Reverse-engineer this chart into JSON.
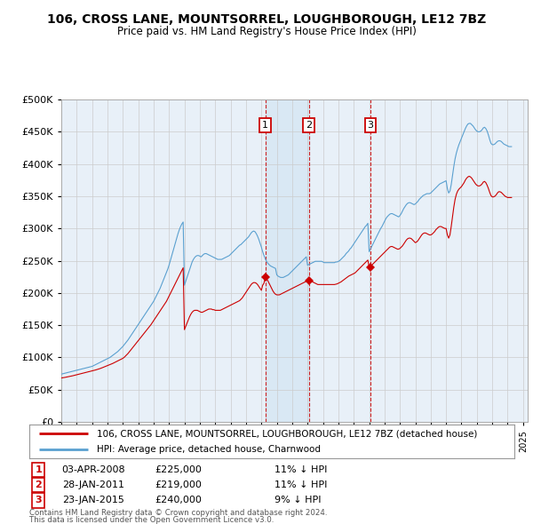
{
  "title": "106, CROSS LANE, MOUNTSORREL, LOUGHBOROUGH, LE12 7BZ",
  "subtitle": "Price paid vs. HM Land Registry's House Price Index (HPI)",
  "hpi_color": "#5aa0d0",
  "price_color": "#cc0000",
  "background_color": "#ffffff",
  "grid_color": "#cccccc",
  "chart_bg_color": "#e8f0f8",
  "ylim": [
    0,
    500000
  ],
  "yticks": [
    0,
    50000,
    100000,
    150000,
    200000,
    250000,
    300000,
    350000,
    400000,
    450000,
    500000
  ],
  "legend_label_price": "106, CROSS LANE, MOUNTSORREL, LOUGHBOROUGH, LE12 7BZ (detached house)",
  "legend_label_hpi": "HPI: Average price, detached house, Charnwood",
  "transactions": [
    {
      "num": 1,
      "date": "03-APR-2008",
      "price": 225000,
      "hpi_diff": "11% ↓ HPI",
      "x": 2008.25
    },
    {
      "num": 2,
      "date": "28-JAN-2011",
      "price": 219000,
      "hpi_diff": "11% ↓ HPI",
      "x": 2011.08
    },
    {
      "num": 3,
      "date": "23-JAN-2015",
      "price": 240000,
      "hpi_diff": "9% ↓ HPI",
      "x": 2015.08
    }
  ],
  "footnote1": "Contains HM Land Registry data © Crown copyright and database right 2024.",
  "footnote2": "This data is licensed under the Open Government Licence v3.0.",
  "hpi_data_x": [
    1995.0,
    1995.083,
    1995.167,
    1995.25,
    1995.333,
    1995.417,
    1995.5,
    1995.583,
    1995.667,
    1995.75,
    1995.833,
    1995.917,
    1996.0,
    1996.083,
    1996.167,
    1996.25,
    1996.333,
    1996.417,
    1996.5,
    1996.583,
    1996.667,
    1996.75,
    1996.833,
    1996.917,
    1997.0,
    1997.083,
    1997.167,
    1997.25,
    1997.333,
    1997.417,
    1997.5,
    1997.583,
    1997.667,
    1997.75,
    1997.833,
    1997.917,
    1998.0,
    1998.083,
    1998.167,
    1998.25,
    1998.333,
    1998.417,
    1998.5,
    1998.583,
    1998.667,
    1998.75,
    1998.833,
    1998.917,
    1999.0,
    1999.083,
    1999.167,
    1999.25,
    1999.333,
    1999.417,
    1999.5,
    1999.583,
    1999.667,
    1999.75,
    1999.833,
    1999.917,
    2000.0,
    2000.083,
    2000.167,
    2000.25,
    2000.333,
    2000.417,
    2000.5,
    2000.583,
    2000.667,
    2000.75,
    2000.833,
    2000.917,
    2001.0,
    2001.083,
    2001.167,
    2001.25,
    2001.333,
    2001.417,
    2001.5,
    2001.583,
    2001.667,
    2001.75,
    2001.833,
    2001.917,
    2002.0,
    2002.083,
    2002.167,
    2002.25,
    2002.333,
    2002.417,
    2002.5,
    2002.583,
    2002.667,
    2002.75,
    2002.833,
    2002.917,
    2003.0,
    2003.083,
    2003.167,
    2003.25,
    2003.333,
    2003.417,
    2003.5,
    2003.583,
    2003.667,
    2003.75,
    2003.833,
    2003.917,
    2004.0,
    2004.083,
    2004.167,
    2004.25,
    2004.333,
    2004.417,
    2004.5,
    2004.583,
    2004.667,
    2004.75,
    2004.833,
    2004.917,
    2005.0,
    2005.083,
    2005.167,
    2005.25,
    2005.333,
    2005.417,
    2005.5,
    2005.583,
    2005.667,
    2005.75,
    2005.833,
    2005.917,
    2006.0,
    2006.083,
    2006.167,
    2006.25,
    2006.333,
    2006.417,
    2006.5,
    2006.583,
    2006.667,
    2006.75,
    2006.833,
    2006.917,
    2007.0,
    2007.083,
    2007.167,
    2007.25,
    2007.333,
    2007.417,
    2007.5,
    2007.583,
    2007.667,
    2007.75,
    2007.833,
    2007.917,
    2008.0,
    2008.083,
    2008.167,
    2008.25,
    2008.333,
    2008.417,
    2008.5,
    2008.583,
    2008.667,
    2008.75,
    2008.833,
    2008.917,
    2009.0,
    2009.083,
    2009.167,
    2009.25,
    2009.333,
    2009.417,
    2009.5,
    2009.583,
    2009.667,
    2009.75,
    2009.833,
    2009.917,
    2010.0,
    2010.083,
    2010.167,
    2010.25,
    2010.333,
    2010.417,
    2010.5,
    2010.583,
    2010.667,
    2010.75,
    2010.833,
    2010.917,
    2011.0,
    2011.083,
    2011.167,
    2011.25,
    2011.333,
    2011.417,
    2011.5,
    2011.583,
    2011.667,
    2011.75,
    2011.833,
    2011.917,
    2012.0,
    2012.083,
    2012.167,
    2012.25,
    2012.333,
    2012.417,
    2012.5,
    2012.583,
    2012.667,
    2012.75,
    2012.833,
    2012.917,
    2013.0,
    2013.083,
    2013.167,
    2013.25,
    2013.333,
    2013.417,
    2013.5,
    2013.583,
    2013.667,
    2013.75,
    2013.833,
    2013.917,
    2014.0,
    2014.083,
    2014.167,
    2014.25,
    2014.333,
    2014.417,
    2014.5,
    2014.583,
    2014.667,
    2014.75,
    2014.833,
    2014.917,
    2015.0,
    2015.083,
    2015.167,
    2015.25,
    2015.333,
    2015.417,
    2015.5,
    2015.583,
    2015.667,
    2015.75,
    2015.833,
    2015.917,
    2016.0,
    2016.083,
    2016.167,
    2016.25,
    2016.333,
    2016.417,
    2016.5,
    2016.583,
    2016.667,
    2016.75,
    2016.833,
    2016.917,
    2017.0,
    2017.083,
    2017.167,
    2017.25,
    2017.333,
    2017.417,
    2017.5,
    2017.583,
    2017.667,
    2017.75,
    2017.833,
    2017.917,
    2018.0,
    2018.083,
    2018.167,
    2018.25,
    2018.333,
    2018.417,
    2018.5,
    2018.583,
    2018.667,
    2018.75,
    2018.833,
    2018.917,
    2019.0,
    2019.083,
    2019.167,
    2019.25,
    2019.333,
    2019.417,
    2019.5,
    2019.583,
    2019.667,
    2019.75,
    2019.833,
    2019.917,
    2020.0,
    2020.083,
    2020.167,
    2020.25,
    2020.333,
    2020.417,
    2020.5,
    2020.583,
    2020.667,
    2020.75,
    2020.833,
    2020.917,
    2021.0,
    2021.083,
    2021.167,
    2021.25,
    2021.333,
    2021.417,
    2021.5,
    2021.583,
    2021.667,
    2021.75,
    2021.833,
    2021.917,
    2022.0,
    2022.083,
    2022.167,
    2022.25,
    2022.333,
    2022.417,
    2022.5,
    2022.583,
    2022.667,
    2022.75,
    2022.833,
    2022.917,
    2023.0,
    2023.083,
    2023.167,
    2023.25,
    2023.333,
    2023.417,
    2023.5,
    2023.583,
    2023.667,
    2023.75,
    2023.833,
    2023.917,
    2024.0,
    2024.083,
    2024.167,
    2024.25
  ],
  "hpi_data_y": [
    74000,
    74500,
    75000,
    75500,
    76000,
    76500,
    77000,
    77500,
    78000,
    78500,
    79000,
    79500,
    80000,
    80500,
    81000,
    81500,
    82000,
    82500,
    83000,
    83500,
    84000,
    84500,
    85000,
    85500,
    86000,
    87000,
    88000,
    89000,
    90000,
    91000,
    92000,
    93000,
    94000,
    95000,
    96000,
    97000,
    98000,
    99000,
    100000,
    101500,
    103000,
    104500,
    106000,
    107500,
    109000,
    111000,
    113000,
    115000,
    117000,
    119500,
    122000,
    124500,
    127000,
    130000,
    133000,
    136000,
    139000,
    142000,
    145000,
    148000,
    151000,
    154000,
    157000,
    160000,
    163000,
    166000,
    169000,
    172000,
    175000,
    178000,
    181000,
    184000,
    187000,
    191000,
    195000,
    199000,
    203000,
    207000,
    212000,
    217000,
    222000,
    227000,
    232000,
    237000,
    243000,
    250000,
    257000,
    264000,
    271000,
    278000,
    285000,
    292000,
    298000,
    303000,
    307000,
    310000,
    212000,
    218000,
    224000,
    230000,
    236000,
    242000,
    248000,
    252000,
    255000,
    257000,
    258000,
    258000,
    257000,
    256000,
    258000,
    260000,
    261000,
    261000,
    260000,
    259000,
    258000,
    257000,
    256000,
    255000,
    254000,
    253000,
    252000,
    252000,
    252000,
    252000,
    253000,
    254000,
    255000,
    256000,
    257000,
    258000,
    260000,
    262000,
    264000,
    266000,
    268000,
    270000,
    272000,
    274000,
    275000,
    277000,
    279000,
    281000,
    283000,
    285000,
    287000,
    290000,
    293000,
    295000,
    296000,
    295000,
    292000,
    288000,
    283000,
    277000,
    271000,
    264000,
    258000,
    253000,
    249000,
    246000,
    244000,
    242000,
    241000,
    240000,
    239000,
    238000,
    228000,
    226000,
    225000,
    224000,
    224000,
    224000,
    225000,
    226000,
    227000,
    228000,
    230000,
    232000,
    234000,
    236000,
    238000,
    240000,
    242000,
    244000,
    246000,
    248000,
    250000,
    252000,
    254000,
    256000,
    243000,
    244000,
    245000,
    246000,
    247000,
    248000,
    249000,
    249000,
    249000,
    249000,
    249000,
    249000,
    248000,
    247000,
    247000,
    247000,
    247000,
    247000,
    247000,
    247000,
    247000,
    247000,
    248000,
    248000,
    249000,
    250000,
    252000,
    254000,
    256000,
    258000,
    261000,
    263000,
    265000,
    268000,
    270000,
    273000,
    276000,
    279000,
    282000,
    285000,
    288000,
    291000,
    294000,
    297000,
    300000,
    303000,
    305000,
    308000,
    264000,
    268000,
    272000,
    276000,
    280000,
    284000,
    288000,
    292000,
    296000,
    300000,
    303000,
    307000,
    311000,
    315000,
    318000,
    320000,
    322000,
    323000,
    323000,
    322000,
    321000,
    320000,
    319000,
    318000,
    320000,
    323000,
    327000,
    331000,
    334000,
    337000,
    339000,
    340000,
    340000,
    339000,
    338000,
    337000,
    338000,
    340000,
    342000,
    345000,
    347000,
    349000,
    351000,
    352000,
    353000,
    354000,
    354000,
    354000,
    355000,
    357000,
    359000,
    361000,
    363000,
    365000,
    367000,
    369000,
    370000,
    371000,
    372000,
    373000,
    374000,
    362000,
    355000,
    358000,
    368000,
    382000,
    396000,
    408000,
    417000,
    424000,
    430000,
    435000,
    440000,
    445000,
    450000,
    455000,
    459000,
    462000,
    463000,
    463000,
    461000,
    459000,
    456000,
    453000,
    451000,
    450000,
    450000,
    451000,
    453000,
    456000,
    457000,
    455000,
    451000,
    445000,
    438000,
    432000,
    430000,
    430000,
    431000,
    433000,
    435000,
    436000,
    436000,
    435000,
    433000,
    431000,
    430000,
    429000,
    428000,
    427000,
    427000,
    427000
  ],
  "price_data_x": [
    1995.0,
    1995.083,
    1995.167,
    1995.25,
    1995.333,
    1995.417,
    1995.5,
    1995.583,
    1995.667,
    1995.75,
    1995.833,
    1995.917,
    1996.0,
    1996.083,
    1996.167,
    1996.25,
    1996.333,
    1996.417,
    1996.5,
    1996.583,
    1996.667,
    1996.75,
    1996.833,
    1996.917,
    1997.0,
    1997.083,
    1997.167,
    1997.25,
    1997.333,
    1997.417,
    1997.5,
    1997.583,
    1997.667,
    1997.75,
    1997.833,
    1997.917,
    1998.0,
    1998.083,
    1998.167,
    1998.25,
    1998.333,
    1998.417,
    1998.5,
    1998.583,
    1998.667,
    1998.75,
    1998.833,
    1998.917,
    1999.0,
    1999.083,
    1999.167,
    1999.25,
    1999.333,
    1999.417,
    1999.5,
    1999.583,
    1999.667,
    1999.75,
    1999.833,
    1999.917,
    2000.0,
    2000.083,
    2000.167,
    2000.25,
    2000.333,
    2000.417,
    2000.5,
    2000.583,
    2000.667,
    2000.75,
    2000.833,
    2000.917,
    2001.0,
    2001.083,
    2001.167,
    2001.25,
    2001.333,
    2001.417,
    2001.5,
    2001.583,
    2001.667,
    2001.75,
    2001.833,
    2001.917,
    2002.0,
    2002.083,
    2002.167,
    2002.25,
    2002.333,
    2002.417,
    2002.5,
    2002.583,
    2002.667,
    2002.75,
    2002.833,
    2002.917,
    2003.0,
    2003.083,
    2003.167,
    2003.25,
    2003.333,
    2003.417,
    2003.5,
    2003.583,
    2003.667,
    2003.75,
    2003.833,
    2003.917,
    2004.0,
    2004.083,
    2004.167,
    2004.25,
    2004.333,
    2004.417,
    2004.5,
    2004.583,
    2004.667,
    2004.75,
    2004.833,
    2004.917,
    2005.0,
    2005.083,
    2005.167,
    2005.25,
    2005.333,
    2005.417,
    2005.5,
    2005.583,
    2005.667,
    2005.75,
    2005.833,
    2005.917,
    2006.0,
    2006.083,
    2006.167,
    2006.25,
    2006.333,
    2006.417,
    2006.5,
    2006.583,
    2006.667,
    2006.75,
    2006.833,
    2006.917,
    2007.0,
    2007.083,
    2007.167,
    2007.25,
    2007.333,
    2007.417,
    2007.5,
    2007.583,
    2007.667,
    2007.75,
    2007.833,
    2007.917,
    2008.0,
    2008.083,
    2008.167,
    2008.25,
    2008.333,
    2008.417,
    2008.5,
    2008.583,
    2008.667,
    2008.75,
    2008.833,
    2008.917,
    2009.0,
    2009.083,
    2009.167,
    2009.25,
    2009.333,
    2009.417,
    2009.5,
    2009.583,
    2009.667,
    2009.75,
    2009.833,
    2009.917,
    2010.0,
    2010.083,
    2010.167,
    2010.25,
    2010.333,
    2010.417,
    2010.5,
    2010.583,
    2010.667,
    2010.75,
    2010.833,
    2010.917,
    2011.0,
    2011.083,
    2011.167,
    2011.25,
    2011.333,
    2011.417,
    2011.5,
    2011.583,
    2011.667,
    2011.75,
    2011.833,
    2011.917,
    2012.0,
    2012.083,
    2012.167,
    2012.25,
    2012.333,
    2012.417,
    2012.5,
    2012.583,
    2012.667,
    2012.75,
    2012.833,
    2012.917,
    2013.0,
    2013.083,
    2013.167,
    2013.25,
    2013.333,
    2013.417,
    2013.5,
    2013.583,
    2013.667,
    2013.75,
    2013.833,
    2013.917,
    2014.0,
    2014.083,
    2014.167,
    2014.25,
    2014.333,
    2014.417,
    2014.5,
    2014.583,
    2014.667,
    2014.75,
    2014.833,
    2014.917,
    2015.0,
    2015.083,
    2015.167,
    2015.25,
    2015.333,
    2015.417,
    2015.5,
    2015.583,
    2015.667,
    2015.75,
    2015.833,
    2015.917,
    2016.0,
    2016.083,
    2016.167,
    2016.25,
    2016.333,
    2016.417,
    2016.5,
    2016.583,
    2016.667,
    2016.75,
    2016.833,
    2016.917,
    2017.0,
    2017.083,
    2017.167,
    2017.25,
    2017.333,
    2017.417,
    2017.5,
    2017.583,
    2017.667,
    2017.75,
    2017.833,
    2017.917,
    2018.0,
    2018.083,
    2018.167,
    2018.25,
    2018.333,
    2018.417,
    2018.5,
    2018.583,
    2018.667,
    2018.75,
    2018.833,
    2018.917,
    2019.0,
    2019.083,
    2019.167,
    2019.25,
    2019.333,
    2019.417,
    2019.5,
    2019.583,
    2019.667,
    2019.75,
    2019.833,
    2019.917,
    2020.0,
    2020.083,
    2020.167,
    2020.25,
    2020.333,
    2020.417,
    2020.5,
    2020.583,
    2020.667,
    2020.75,
    2020.833,
    2020.917,
    2021.0,
    2021.083,
    2021.167,
    2021.25,
    2021.333,
    2021.417,
    2021.5,
    2021.583,
    2021.667,
    2021.75,
    2021.833,
    2021.917,
    2022.0,
    2022.083,
    2022.167,
    2022.25,
    2022.333,
    2022.417,
    2022.5,
    2022.583,
    2022.667,
    2022.75,
    2022.833,
    2022.917,
    2023.0,
    2023.083,
    2023.167,
    2023.25,
    2023.333,
    2023.417,
    2023.5,
    2023.583,
    2023.667,
    2023.75,
    2023.833,
    2023.917,
    2024.0,
    2024.083,
    2024.167,
    2024.25
  ],
  "price_data_y": [
    68000,
    68300,
    68600,
    69000,
    69400,
    69800,
    70200,
    70600,
    71000,
    71500,
    72000,
    72500,
    73000,
    73500,
    74000,
    74500,
    75000,
    75500,
    76000,
    76500,
    77000,
    77500,
    78000,
    78500,
    79000,
    79500,
    80000,
    80600,
    81200,
    81800,
    82500,
    83200,
    84000,
    84800,
    85600,
    86400,
    87200,
    88000,
    88800,
    89600,
    90500,
    91500,
    92500,
    93500,
    94500,
    95500,
    96500,
    97500,
    98500,
    100000,
    102000,
    104000,
    106000,
    108500,
    111000,
    113500,
    116000,
    118500,
    121000,
    123500,
    126000,
    128500,
    131000,
    133500,
    136000,
    138500,
    141000,
    143500,
    146000,
    148500,
    151000,
    154000,
    157000,
    160000,
    163000,
    166000,
    169000,
    172000,
    175000,
    178000,
    181000,
    184000,
    187000,
    191000,
    195000,
    199000,
    203000,
    207000,
    211000,
    215000,
    219000,
    223000,
    227000,
    231000,
    235000,
    239000,
    143000,
    148000,
    153000,
    158000,
    163000,
    167000,
    170000,
    172000,
    173000,
    173000,
    173000,
    172000,
    171000,
    170000,
    170000,
    171000,
    172000,
    173000,
    174000,
    175000,
    175000,
    175000,
    174000,
    174000,
    173000,
    173000,
    173000,
    173000,
    173000,
    174000,
    175000,
    176000,
    177000,
    178000,
    179000,
    180000,
    181000,
    182000,
    183000,
    184000,
    185000,
    186000,
    187000,
    188000,
    190000,
    192000,
    195000,
    198000,
    201000,
    204000,
    207000,
    210000,
    213000,
    215000,
    216000,
    216000,
    215000,
    213000,
    210000,
    207000,
    204000,
    212000,
    215000,
    225000,
    222000,
    219000,
    215000,
    211000,
    207000,
    203000,
    200000,
    198000,
    197000,
    197000,
    197000,
    198000,
    199000,
    200000,
    201000,
    202000,
    203000,
    204000,
    205000,
    206000,
    207000,
    208000,
    209000,
    210000,
    211000,
    212000,
    213000,
    214000,
    215000,
    216000,
    217000,
    218000,
    219000,
    219000,
    219000,
    218000,
    217000,
    216000,
    215000,
    214000,
    213000,
    213000,
    213000,
    213000,
    213000,
    213000,
    213000,
    213000,
    213000,
    213000,
    213000,
    213000,
    213000,
    213000,
    213500,
    214000,
    215000,
    216000,
    217000,
    218500,
    220000,
    221500,
    223000,
    224500,
    226000,
    227000,
    228000,
    229000,
    230000,
    231000,
    233000,
    235000,
    237000,
    239000,
    241000,
    243000,
    245000,
    247000,
    249000,
    251000,
    240000,
    241000,
    243000,
    245000,
    247000,
    249000,
    251000,
    253000,
    255000,
    257000,
    259000,
    261000,
    263000,
    265000,
    267000,
    269000,
    271000,
    272000,
    272000,
    271000,
    270000,
    269000,
    268000,
    268000,
    269000,
    271000,
    273000,
    276000,
    279000,
    282000,
    284000,
    285000,
    285000,
    284000,
    282000,
    280000,
    278000,
    279000,
    281000,
    284000,
    287000,
    290000,
    292000,
    293000,
    293000,
    292000,
    291000,
    290000,
    290000,
    291000,
    293000,
    295000,
    298000,
    300000,
    302000,
    303000,
    303000,
    302000,
    301000,
    300000,
    300000,
    290000,
    285000,
    290000,
    303000,
    318000,
    333000,
    345000,
    353000,
    358000,
    361000,
    363000,
    365000,
    368000,
    371000,
    375000,
    378000,
    380000,
    381000,
    380000,
    378000,
    375000,
    372000,
    369000,
    367000,
    366000,
    366000,
    367000,
    369000,
    372000,
    373000,
    371000,
    367000,
    362000,
    356000,
    351000,
    349000,
    349000,
    350000,
    352000,
    355000,
    357000,
    357000,
    356000,
    354000,
    352000,
    350000,
    349000,
    348000,
    348000,
    348000,
    348000
  ]
}
